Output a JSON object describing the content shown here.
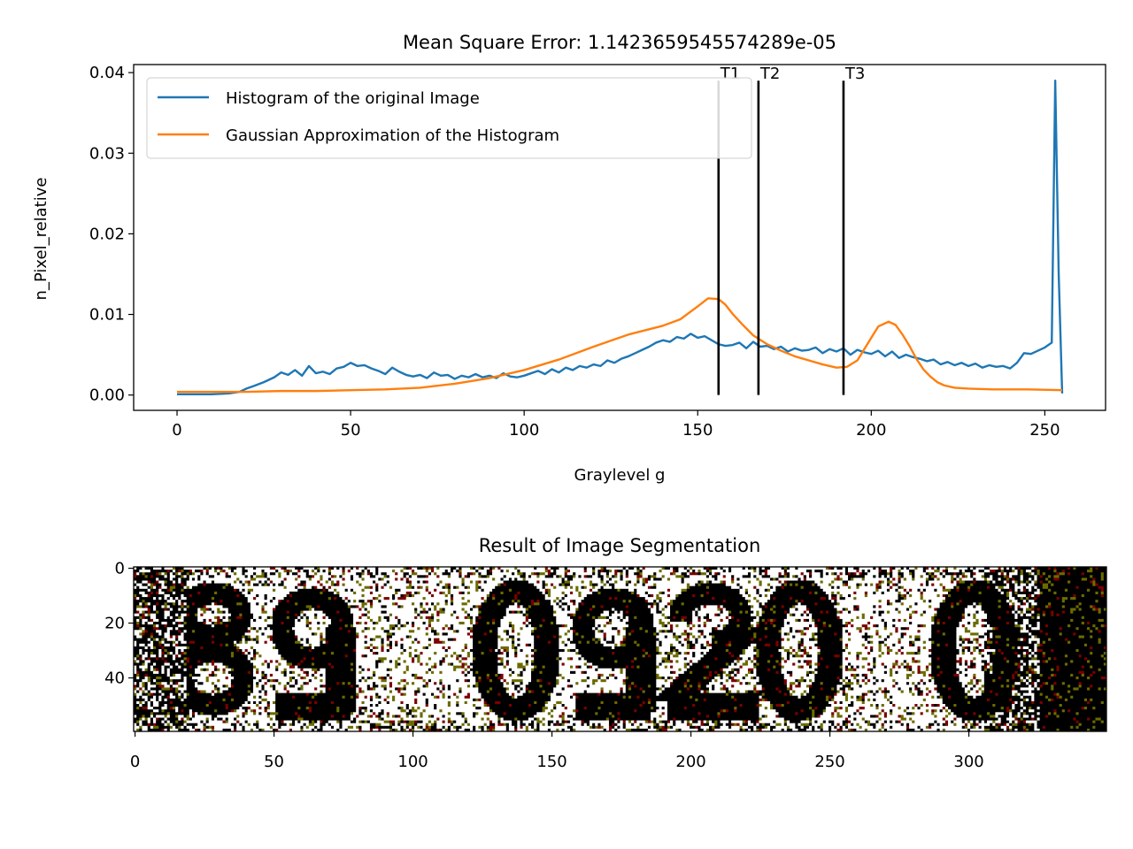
{
  "figure": {
    "background": "#ffffff"
  },
  "chart_data": [
    {
      "type": "line",
      "title": "Mean Square Error: 1.1423659545574289e-05",
      "xlabel": "Graylevel g",
      "ylabel": "n_Pixel_relative",
      "xlim": [
        -12.5,
        267.5
      ],
      "ylim": [
        -0.0019,
        0.041
      ],
      "xticks": [
        0,
        50,
        100,
        150,
        200,
        250
      ],
      "yticks": [
        0.0,
        0.01,
        0.02,
        0.03,
        0.04
      ],
      "ytick_labels": [
        "0.00",
        "0.01",
        "0.02",
        "0.03",
        "0.04"
      ],
      "legend_position": "top-left",
      "grid": false,
      "series": [
        {
          "name": "Histogram of the original Image",
          "color": "#1f77b4",
          "x": [
            0,
            5,
            10,
            15,
            18,
            20,
            22,
            25,
            28,
            30,
            32,
            34,
            36,
            38,
            40,
            42,
            44,
            46,
            48,
            50,
            52,
            54,
            56,
            58,
            60,
            62,
            64,
            66,
            68,
            70,
            72,
            74,
            76,
            78,
            80,
            82,
            84,
            86,
            88,
            90,
            92,
            94,
            96,
            98,
            100,
            102,
            104,
            106,
            108,
            110,
            112,
            114,
            116,
            118,
            120,
            122,
            124,
            126,
            128,
            130,
            132,
            134,
            136,
            138,
            140,
            142,
            144,
            146,
            148,
            150,
            152,
            154,
            156,
            158,
            160,
            162,
            164,
            166,
            168,
            170,
            172,
            174,
            176,
            178,
            180,
            182,
            184,
            186,
            188,
            190,
            192,
            194,
            196,
            198,
            200,
            202,
            204,
            206,
            208,
            210,
            212,
            214,
            216,
            218,
            220,
            222,
            224,
            226,
            228,
            230,
            232,
            234,
            236,
            238,
            240,
            242,
            244,
            246,
            248,
            250,
            252,
            253,
            254,
            255
          ],
          "y": [
            0.0001,
            0.0001,
            0.0001,
            0.0002,
            0.0004,
            0.0008,
            0.0011,
            0.0016,
            0.0022,
            0.0028,
            0.0025,
            0.0031,
            0.0024,
            0.0036,
            0.0027,
            0.0029,
            0.0026,
            0.0033,
            0.0035,
            0.004,
            0.0036,
            0.0037,
            0.0033,
            0.003,
            0.0026,
            0.0034,
            0.0029,
            0.0025,
            0.0023,
            0.0025,
            0.0021,
            0.0028,
            0.0024,
            0.0025,
            0.002,
            0.0024,
            0.0022,
            0.0026,
            0.0022,
            0.0024,
            0.0021,
            0.0027,
            0.0023,
            0.0022,
            0.0024,
            0.0027,
            0.003,
            0.0026,
            0.0032,
            0.0028,
            0.0034,
            0.0031,
            0.0036,
            0.0034,
            0.0038,
            0.0036,
            0.0043,
            0.004,
            0.0045,
            0.0048,
            0.0052,
            0.0056,
            0.006,
            0.0065,
            0.0068,
            0.0066,
            0.0072,
            0.007,
            0.0076,
            0.0071,
            0.0073,
            0.0068,
            0.0063,
            0.0061,
            0.0062,
            0.0065,
            0.0058,
            0.0066,
            0.006,
            0.0061,
            0.0057,
            0.006,
            0.0054,
            0.0058,
            0.0055,
            0.0056,
            0.0059,
            0.0052,
            0.0057,
            0.0054,
            0.0058,
            0.005,
            0.0056,
            0.0053,
            0.0051,
            0.0055,
            0.0048,
            0.0054,
            0.0046,
            0.005,
            0.0047,
            0.0045,
            0.0042,
            0.0044,
            0.0038,
            0.0041,
            0.0037,
            0.004,
            0.0036,
            0.0039,
            0.0034,
            0.0037,
            0.0035,
            0.0036,
            0.0033,
            0.004,
            0.0052,
            0.0051,
            0.0055,
            0.0059,
            0.0065,
            0.039,
            0.015,
            0.0002
          ]
        },
        {
          "name": "Gaussian Approximation of the Histogram",
          "color": "#ff7f0e",
          "x": [
            0,
            10,
            20,
            30,
            40,
            50,
            60,
            70,
            80,
            90,
            100,
            110,
            120,
            130,
            140,
            145,
            150,
            153,
            156,
            158,
            160,
            163,
            166,
            170,
            174,
            178,
            182,
            186,
            190,
            193,
            196,
            199,
            202,
            205,
            207,
            209,
            211,
            213,
            215,
            217,
            219,
            221,
            224,
            228,
            235,
            245,
            255
          ],
          "y": [
            0.0004,
            0.0004,
            0.0004,
            0.0005,
            0.0005,
            0.0006,
            0.0007,
            0.0009,
            0.0014,
            0.0021,
            0.0031,
            0.0044,
            0.006,
            0.0075,
            0.0086,
            0.0094,
            0.011,
            0.012,
            0.0119,
            0.0112,
            0.0101,
            0.0087,
            0.0074,
            0.0063,
            0.0055,
            0.0048,
            0.0043,
            0.0038,
            0.0034,
            0.0035,
            0.0043,
            0.0064,
            0.0085,
            0.0091,
            0.0087,
            0.0075,
            0.0061,
            0.0045,
            0.0032,
            0.0023,
            0.0016,
            0.0012,
            0.0009,
            0.0008,
            0.0007,
            0.0007,
            0.0006
          ]
        }
      ],
      "thresholds": [
        {
          "label": "T1",
          "x": 156,
          "y0": 0.0,
          "y1": 0.039
        },
        {
          "label": "T2",
          "x": 167.5,
          "y0": 0.0,
          "y1": 0.039
        },
        {
          "label": "T3",
          "x": 192,
          "y0": 0.0,
          "y1": 0.039
        }
      ]
    },
    {
      "type": "heatmap",
      "title": "Result of Image Segmentation",
      "xlim": [
        -0.5,
        349.5
      ],
      "ylim": [
        59.5,
        -0.5
      ],
      "xticks": [
        0,
        50,
        100,
        150,
        200,
        250,
        300
      ],
      "yticks": [
        0,
        20,
        40
      ],
      "class_colors": [
        "#000000",
        "#7a0000",
        "#6b6b00",
        "#ffffff"
      ]
    }
  ]
}
